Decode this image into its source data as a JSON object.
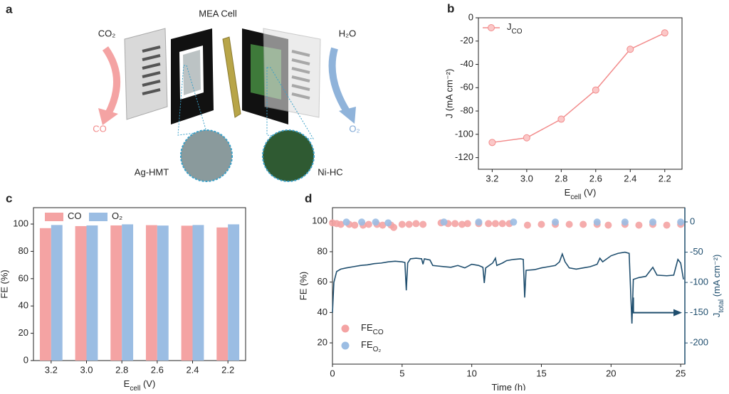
{
  "diagram": {
    "panel_label": "a",
    "title": "MEA Cell",
    "inlet_left": "CO₂",
    "inlet_right": "H₂O",
    "outlet_left": "CO",
    "outlet_right": "O₂",
    "label_left": "Ag-HMT",
    "label_right": "Ni-HC"
  },
  "chart_data": [
    {
      "type": "line",
      "panel_label": "b",
      "xlabel": [
        "E",
        "cell",
        " (V)"
      ],
      "ylabel": "J (mA cm⁻²)",
      "x": [
        3.2,
        3.0,
        2.8,
        2.6,
        2.4,
        2.2
      ],
      "series": [
        {
          "name": [
            "J",
            "CO"
          ],
          "color": "#f28b8b",
          "values": [
            -107,
            -103,
            -87,
            -62,
            -27,
            -13
          ]
        }
      ],
      "xlim": [
        3.28,
        2.1
      ],
      "xticks": [
        {
          "value": 3.2,
          "label": "3.2"
        },
        {
          "value": 3.0,
          "label": "3.0"
        },
        {
          "value": 2.8,
          "label": "2.8"
        },
        {
          "value": 2.6,
          "label": "2.6"
        },
        {
          "value": 2.4,
          "label": "2.4"
        },
        {
          "value": 2.2,
          "label": "2.2"
        }
      ],
      "ylim": [
        -130,
        0
      ],
      "yticks": [
        0,
        -20,
        -40,
        -60,
        -80,
        -100,
        -120
      ],
      "legend": "upper left"
    },
    {
      "type": "bar",
      "panel_label": "c",
      "xlabel": [
        "E",
        "cell",
        " (V)"
      ],
      "ylabel": "FE (%)",
      "categories": [
        "3.2",
        "3.0",
        "2.8",
        "2.6",
        "2.4",
        "2.2"
      ],
      "series": [
        {
          "name": [
            "CO"
          ],
          "color": "#f4a3a3",
          "values": [
            97,
            98.5,
            99,
            99.2,
            98.8,
            97.5
          ]
        },
        {
          "name": [
            "O₂"
          ],
          "color": "#9bbde3",
          "values": [
            99.3,
            99,
            99.8,
            98.9,
            99.3,
            99.8
          ]
        }
      ],
      "ylim": [
        0,
        112
      ],
      "yticks": [
        0,
        20,
        40,
        60,
        80,
        100
      ],
      "legend": "upper left"
    },
    {
      "type": "combo",
      "panel_label": "d",
      "xlabel": [
        "Time (h)"
      ],
      "ylabel": "FE (%)",
      "y2label": [
        "J",
        "total",
        " (mA cm⁻²)"
      ],
      "xlim": [
        0,
        25.3
      ],
      "xticks": [
        0,
        5,
        10,
        15,
        20,
        25
      ],
      "ylim": [
        6,
        109
      ],
      "yticks": [
        20,
        40,
        60,
        80,
        100
      ],
      "y2lim": [
        -235,
        23.5
      ],
      "y2ticks": [
        0,
        -50,
        -100,
        -150,
        -200
      ],
      "legend": "lower left",
      "series": [
        {
          "type": "scatter",
          "name": [
            "FE",
            "CO"
          ],
          "color": "#f4a3a3",
          "x": [
            0,
            0.3,
            0.6,
            1.2,
            1.6,
            2.2,
            2.6,
            3.2,
            3.6,
            4.2,
            4.4,
            5,
            5.5,
            6,
            6.5,
            7.8,
            8.3,
            8.8,
            9.3,
            9.7,
            10.5,
            11.2,
            11.7,
            12.2,
            12.7,
            14,
            15,
            16,
            17,
            18,
            19,
            19.8,
            21,
            22,
            23,
            24,
            25
          ],
          "values": [
            99,
            98.5,
            98,
            98,
            97.5,
            97.5,
            98,
            98,
            97.5,
            97.5,
            96,
            98,
            98,
            98.5,
            98,
            99,
            98.5,
            98.5,
            98,
            98.5,
            98.5,
            98.5,
            98.5,
            98.5,
            98.5,
            97.5,
            98,
            98,
            98,
            98,
            98,
            97.5,
            98,
            97.5,
            98,
            97.5,
            98
          ]
        },
        {
          "type": "scatter",
          "name": [
            "FE",
            "O₂"
          ],
          "color": "#9bbde3",
          "x": [
            1,
            2.1,
            3.1,
            4,
            8,
            10.5,
            13,
            16,
            19,
            21,
            23,
            25
          ],
          "values": [
            99.5,
            99.5,
            99.5,
            99,
            99.5,
            99.5,
            99.5,
            99.5,
            99.5,
            99.5,
            99.5,
            99.5
          ]
        },
        {
          "type": "line",
          "axis": "y2",
          "color": "#1f4e6e",
          "x": [
            0,
            0.1,
            0.3,
            0.6,
            1,
            1.5,
            2,
            2.5,
            3,
            3.5,
            4,
            4.5,
            5,
            5.2,
            5.3,
            5.4,
            5.6,
            6,
            6.4,
            6.5,
            6.6,
            7,
            7.2,
            7.6,
            8,
            8.5,
            9,
            9.5,
            10,
            10.5,
            10.8,
            10.9,
            11,
            11.5,
            11.7,
            11.8,
            12.2,
            12.5,
            13,
            13.5,
            13.7,
            13.8,
            13.9,
            14.5,
            15,
            15.5,
            16,
            16.3,
            16.5,
            16.7,
            17,
            17.5,
            18,
            18.5,
            19,
            19.2,
            19.4,
            20,
            20.5,
            21,
            21.3,
            21.5,
            21.6,
            22,
            22.5,
            23,
            23.3,
            24,
            24.5,
            24.8,
            25,
            25.2
          ],
          "values": [
            -150,
            -100,
            -82,
            -78,
            -76,
            -74,
            -72,
            -71,
            -69,
            -68,
            -66,
            -65,
            -66,
            -67,
            -113,
            -68,
            -61,
            -60,
            -61,
            -70,
            -61,
            -63,
            -72,
            -73,
            -74,
            -75,
            -72,
            -76,
            -70,
            -72,
            -75,
            -101,
            -76,
            -68,
            -60,
            -72,
            -68,
            -64,
            -62,
            -61,
            -62,
            -125,
            -80,
            -79,
            -76,
            -74,
            -72,
            -66,
            -53,
            -66,
            -76,
            -78,
            -76,
            -74,
            -70,
            -60,
            -66,
            -56,
            -52,
            -50,
            -52,
            -168,
            -95,
            -92,
            -90,
            -75,
            -88,
            -89,
            -88,
            -62,
            -68,
            -95
          ]
        }
      ]
    }
  ]
}
